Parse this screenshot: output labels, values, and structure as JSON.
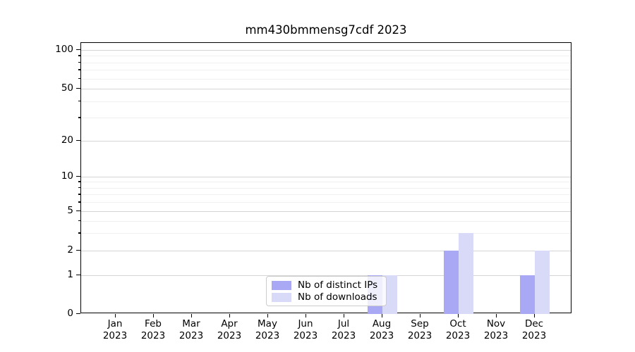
{
  "chart_data": {
    "type": "bar",
    "title": "mm430bmmensg7cdf 2023",
    "year": "2023",
    "categories": [
      "Jan",
      "Feb",
      "Mar",
      "Apr",
      "May",
      "Jun",
      "Jul",
      "Aug",
      "Sep",
      "Oct",
      "Nov",
      "Dec"
    ],
    "series": [
      {
        "name": "Nb of distinct IPs",
        "color": "#a8a8f4",
        "values": [
          0,
          0,
          0,
          0,
          0,
          0,
          0,
          1,
          0,
          2,
          0,
          1
        ]
      },
      {
        "name": "Nb of downloads",
        "color": "#d9d9f8",
        "values": [
          0,
          0,
          0,
          0,
          0,
          0,
          0,
          1,
          0,
          3,
          0,
          2
        ]
      }
    ],
    "y_axis": {
      "scale": "symlog",
      "major_ticks": [
        0,
        1,
        2,
        5,
        10,
        20,
        50,
        100
      ],
      "minor_ticks": [
        3,
        4,
        6,
        7,
        8,
        9,
        30,
        40,
        60,
        70,
        80,
        90
      ],
      "ylim": [
        0,
        120
      ]
    },
    "legend": {
      "position": "lower center"
    },
    "grid": true
  }
}
